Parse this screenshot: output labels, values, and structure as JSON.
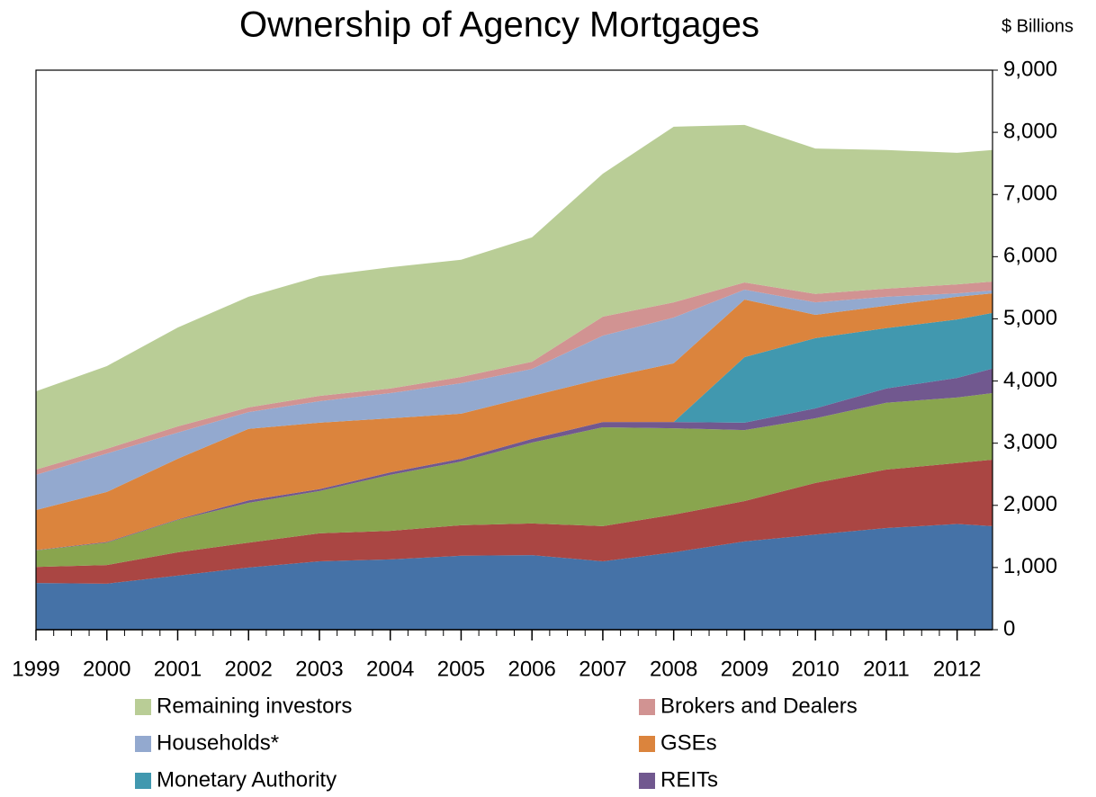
{
  "chart_data": {
    "type": "stacked_area",
    "title": "Ownership of Agency Mortgages",
    "y_axis_label": "$ Billions",
    "x": [
      1999,
      2000,
      2001,
      2002,
      2003,
      2004,
      2005,
      2006,
      2007,
      2008,
      2009,
      2010,
      2011,
      2012,
      2012.5
    ],
    "xlim": [
      1999,
      2012.5
    ],
    "xticks": [
      1999,
      2000,
      2001,
      2002,
      2003,
      2004,
      2005,
      2006,
      2007,
      2008,
      2009,
      2010,
      2011,
      2012
    ],
    "ylim": [
      0,
      9000
    ],
    "yticks": [
      0,
      {
        "value": 1000,
        "label": "1,000"
      },
      {
        "value": 2000,
        "label": "2,000"
      },
      {
        "value": 3000,
        "label": "3,000"
      },
      {
        "value": 4000,
        "label": "4,000"
      },
      {
        "value": 5000,
        "label": "5,000"
      },
      {
        "value": 6000,
        "label": "6,000"
      },
      {
        "value": 7000,
        "label": "7,000"
      },
      {
        "value": 8000,
        "label": "8,000"
      },
      {
        "value": 9000,
        "label": "9,000"
      }
    ],
    "y_axis_side": "right",
    "series": [
      {
        "color": "#4572a7",
        "values": [
          750,
          740,
          870,
          1000,
          1100,
          1130,
          1190,
          1200,
          1100,
          1245,
          1420,
          1530,
          1635,
          1700,
          1665
        ]
      },
      {
        "color": "#aa4643",
        "values": [
          260,
          300,
          375,
          400,
          450,
          460,
          490,
          510,
          565,
          605,
          650,
          830,
          940,
          980,
          1070
        ]
      },
      {
        "color": "#89a54e",
        "values": [
          265,
          360,
          520,
          640,
          680,
          900,
          1025,
          1300,
          1590,
          1390,
          1140,
          1040,
          1075,
          1055,
          1070
        ]
      },
      {
        "name": "REITs",
        "color": "#71588f",
        "values": [
          5,
          10,
          10,
          40,
          30,
          40,
          45,
          60,
          85,
          100,
          120,
          160,
          230,
          315,
          395
        ]
      },
      {
        "name": "Monetary Authority",
        "color": "#4198af",
        "values": [
          0,
          0,
          0,
          0,
          0,
          0,
          0,
          0,
          0,
          0,
          1055,
          1130,
          970,
          940,
          895
        ]
      },
      {
        "name": "GSEs",
        "color": "#db843d",
        "values": [
          645,
          805,
          975,
          1150,
          1070,
          870,
          725,
          690,
          700,
          945,
          925,
          375,
          360,
          365,
          315
        ]
      },
      {
        "name": "Households*",
        "color": "#93a9cf",
        "values": [
          565,
          620,
          420,
          270,
          345,
          405,
          490,
          435,
          690,
          735,
          160,
          200,
          145,
          55,
          45
        ]
      },
      {
        "name": "Brokers and Dealers",
        "color": "#d19392",
        "values": [
          85,
          75,
          100,
          75,
          85,
          75,
          100,
          115,
          305,
          245,
          115,
          135,
          130,
          145,
          145
        ]
      },
      {
        "name": "Remaining investors",
        "color": "#b9cd96",
        "values": [
          1260,
          1330,
          1590,
          1780,
          1925,
          1950,
          1885,
          2000,
          2300,
          2825,
          2535,
          2340,
          2230,
          2115,
          2115
        ]
      }
    ]
  }
}
